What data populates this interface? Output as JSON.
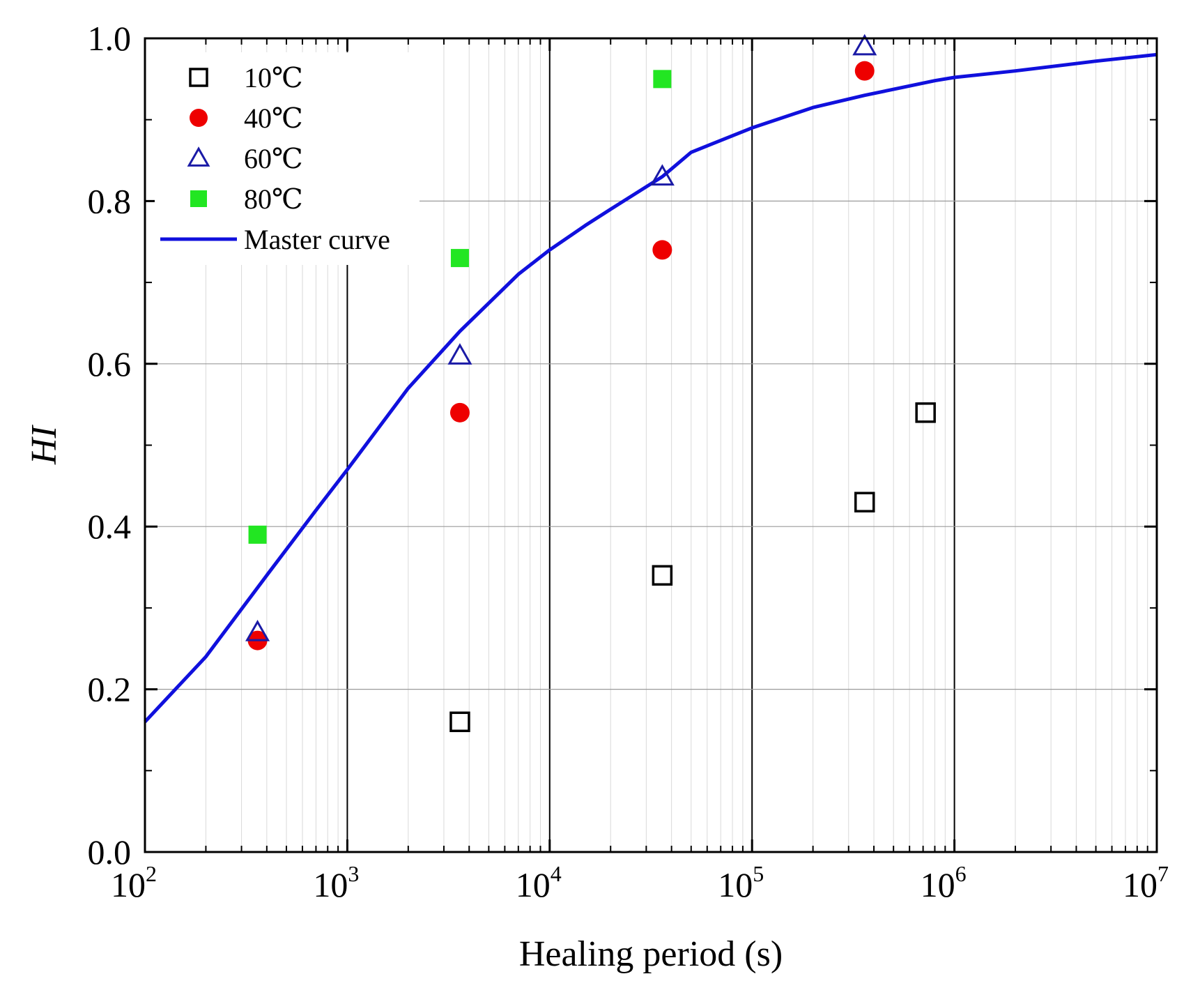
{
  "chart_data": {
    "type": "scatter",
    "title": "",
    "xlabel": "Healing period (s)",
    "ylabel": "HI",
    "xscale": "log",
    "xlim": [
      100,
      10000000
    ],
    "ylim": [
      0.0,
      1.0
    ],
    "x_tick_labels": [
      {
        "value": 100,
        "base": "10",
        "exp": "2"
      },
      {
        "value": 1000,
        "base": "10",
        "exp": "3"
      },
      {
        "value": 10000,
        "base": "10",
        "exp": "4"
      },
      {
        "value": 100000,
        "base": "10",
        "exp": "5"
      },
      {
        "value": 1000000,
        "base": "10",
        "exp": "6"
      },
      {
        "value": 10000000,
        "base": "10",
        "exp": "7"
      }
    ],
    "y_ticks": [
      0.0,
      0.2,
      0.4,
      0.6,
      0.8,
      1.0
    ],
    "y_tick_labels": [
      "0.0",
      "0.2",
      "0.4",
      "0.6",
      "0.8",
      "1.0"
    ],
    "grid": true,
    "legend_position": "top-left",
    "series": [
      {
        "name": "10℃",
        "marker": "open-square",
        "color": "#000000",
        "x": [
          3600,
          36000,
          360000,
          720000
        ],
        "y": [
          0.16,
          0.34,
          0.43,
          0.54
        ]
      },
      {
        "name": "40℃",
        "marker": "filled-circle",
        "color": "#ee0000",
        "x": [
          360,
          3600,
          36000,
          360000
        ],
        "y": [
          0.26,
          0.54,
          0.74,
          0.96
        ]
      },
      {
        "name": "60℃",
        "marker": "open-triangle",
        "color": "#1a1aa6",
        "x": [
          360,
          3600,
          36000,
          360000
        ],
        "y": [
          0.27,
          0.61,
          0.83,
          0.99
        ]
      },
      {
        "name": "80℃",
        "marker": "filled-square",
        "color": "#22e622",
        "x": [
          360,
          3600,
          36000
        ],
        "y": [
          0.39,
          0.73,
          0.95
        ]
      },
      {
        "name": "Master curve",
        "marker": "line",
        "color": "#1010dd",
        "x": [
          100,
          200,
          400,
          700,
          1000,
          2000,
          3600,
          7000,
          10000,
          15000,
          20000,
          36000,
          50000,
          100000,
          200000,
          360000,
          800000,
          1000000,
          2000000,
          5000000,
          10000000
        ],
        "y": [
          0.16,
          0.24,
          0.34,
          0.42,
          0.47,
          0.57,
          0.64,
          0.71,
          0.74,
          0.77,
          0.79,
          0.83,
          0.86,
          0.89,
          0.915,
          0.93,
          0.948,
          0.952,
          0.96,
          0.972,
          0.98
        ]
      }
    ]
  }
}
